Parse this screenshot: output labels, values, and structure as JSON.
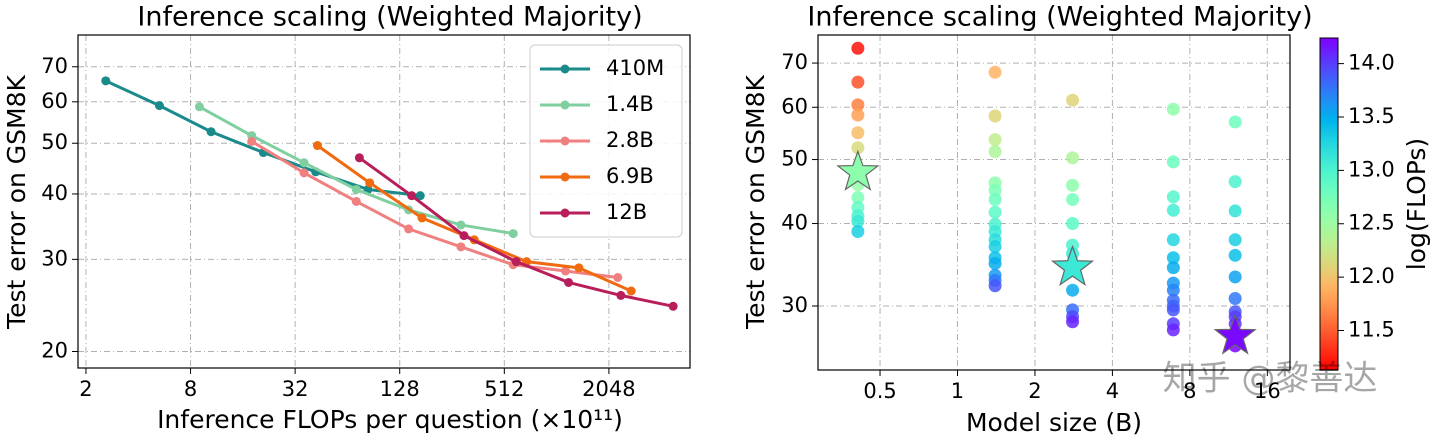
{
  "chart_data": [
    {
      "type": "line",
      "title": "Inference scaling (Weighted Majority)",
      "x_label": "Inference FLOPs per question (×10¹¹)",
      "y_label": "Test error on GSM8K",
      "xlog": true,
      "ylog": true,
      "grid": true,
      "legend": "upper right",
      "xlim": [
        1.8,
        6000
      ],
      "ylim": [
        18.6,
        80.5
      ],
      "xticks": [
        2,
        8,
        32,
        128,
        512,
        2048
      ],
      "yticks": [
        20,
        30,
        40,
        50,
        60,
        70
      ],
      "series": [
        {
          "name": "410M",
          "color": "#1a8a8a",
          "x": [
            2.6,
            5.3,
            10.5,
            21,
            42,
            84,
            168
          ],
          "values": [
            65.8,
            59,
            52.6,
            48,
            44.1,
            40.8,
            39.7
          ]
        },
        {
          "name": "1.4B",
          "color": "#7fcfa0",
          "x": [
            9,
            18,
            36,
            72,
            144,
            288,
            576
          ],
          "values": [
            58.7,
            51.7,
            45.9,
            40.8,
            37.3,
            34.9,
            33.6
          ]
        },
        {
          "name": "2.8B",
          "color": "#f08080",
          "x": [
            18,
            36,
            72,
            144,
            288,
            576,
            1152,
            2304
          ],
          "values": [
            50.4,
            43.9,
            38.7,
            34.3,
            31.7,
            29.3,
            28.5,
            27.7
          ]
        },
        {
          "name": "6.9B",
          "color": "#f06a10",
          "x": [
            43,
            86,
            172,
            344,
            688,
            1376,
            2752
          ],
          "values": [
            49.5,
            42,
            36,
            32.7,
            29.7,
            28.9,
            26.1
          ]
        },
        {
          "name": "12B",
          "color": "#b81e5a",
          "x": [
            75,
            150,
            300,
            600,
            1200,
            2400,
            4800
          ],
          "values": [
            46.9,
            39.7,
            33.3,
            29.7,
            27.1,
            25.6,
            24.4
          ]
        }
      ]
    },
    {
      "type": "scatter",
      "title": "Inference scaling (Weighted Majority)",
      "x_label": "Model size (B)",
      "y_label": "Test error on GSM8K",
      "xlog": true,
      "ylog": true,
      "grid": true,
      "xlim": [
        0.287,
        19.6
      ],
      "ylim": [
        24,
        77.2
      ],
      "xticks": [
        0.5,
        1,
        2,
        4,
        8,
        16
      ],
      "yticks": [
        30,
        40,
        50,
        60,
        70
      ],
      "colormap": "rainbow_r",
      "colorbar_label": "log(FLOPs)",
      "clim": [
        11.13,
        14.24
      ],
      "cticks": [
        11.5,
        {
          "value": 12,
          "label": "12.0"
        },
        12.5,
        {
          "value": 13,
          "label": "13.0"
        },
        13.5,
        {
          "value": 14,
          "label": "14.0"
        }
      ],
      "x": [
        0.41,
        0.41,
        0.41,
        0.41,
        0.41,
        0.41,
        0.41,
        0.41,
        0.41,
        0.41,
        0.41,
        0.41,
        1.4,
        1.4,
        1.4,
        1.4,
        1.4,
        1.4,
        1.4,
        1.4,
        1.4,
        1.4,
        1.4,
        1.4,
        1.4,
        1.4,
        1.4,
        1.4,
        1.4,
        2.8,
        2.8,
        2.8,
        2.8,
        2.8,
        2.8,
        2.8,
        2.8,
        2.8,
        2.8,
        2.8,
        6.9,
        6.9,
        6.9,
        6.9,
        6.9,
        6.9,
        6.9,
        6.9,
        6.9,
        6.9,
        6.9,
        6.9,
        6.9,
        6.9,
        12,
        12,
        12,
        12,
        12,
        12,
        12,
        12,
        12,
        12,
        12
      ],
      "values": [
        73.7,
        65.5,
        60.5,
        58.4,
        54.9,
        52.1,
        45.8,
        43.8,
        42.3,
        41.1,
        40.3,
        38.9,
        67.8,
        58.2,
        53.6,
        51.4,
        46.1,
        44.9,
        43.5,
        41.6,
        39.9,
        38.9,
        37.8,
        36.9,
        35.5,
        34.8,
        33.4,
        32.8,
        32.2,
        61.5,
        50.3,
        45.7,
        43.5,
        40.0,
        37.1,
        36.0,
        31.7,
        29.6,
        28.9,
        28.4,
        59.6,
        49.6,
        43.9,
        41.9,
        37.8,
        35.5,
        34.3,
        32.5,
        31.7,
        30.6,
        30.0,
        29.6,
        28.2,
        27.6,
        57.0,
        46.3,
        41.8,
        37.8,
        35.8,
        33.2,
        30.8,
        29.4,
        28.9,
        28.2,
        26.1
      ],
      "color_values": [
        11.2,
        11.45,
        11.65,
        11.8,
        11.95,
        12.15,
        12.55,
        12.7,
        12.85,
        13.0,
        13.1,
        13.3,
        11.9,
        12.1,
        12.3,
        12.4,
        12.6,
        12.7,
        12.8,
        12.9,
        13.0,
        13.1,
        13.2,
        13.3,
        13.4,
        13.5,
        13.6,
        13.75,
        13.9,
        12.1,
        12.4,
        12.6,
        12.75,
        12.9,
        13.0,
        13.1,
        13.5,
        13.8,
        13.95,
        14.1,
        12.6,
        12.8,
        12.95,
        13.05,
        13.25,
        13.4,
        13.5,
        13.6,
        13.7,
        13.8,
        13.85,
        13.9,
        14.0,
        14.1,
        12.8,
        13.0,
        13.15,
        13.3,
        13.4,
        13.55,
        13.75,
        13.9,
        14.0,
        14.05,
        14.25
      ],
      "stars": {
        "x": [
          0.41,
          2.8,
          12
        ],
        "values": [
          47.8,
          34.3,
          27.0
        ],
        "color_values": [
          12.6,
          13.1,
          14.2
        ]
      },
      "watermark": "知乎 @黎善达"
    }
  ]
}
